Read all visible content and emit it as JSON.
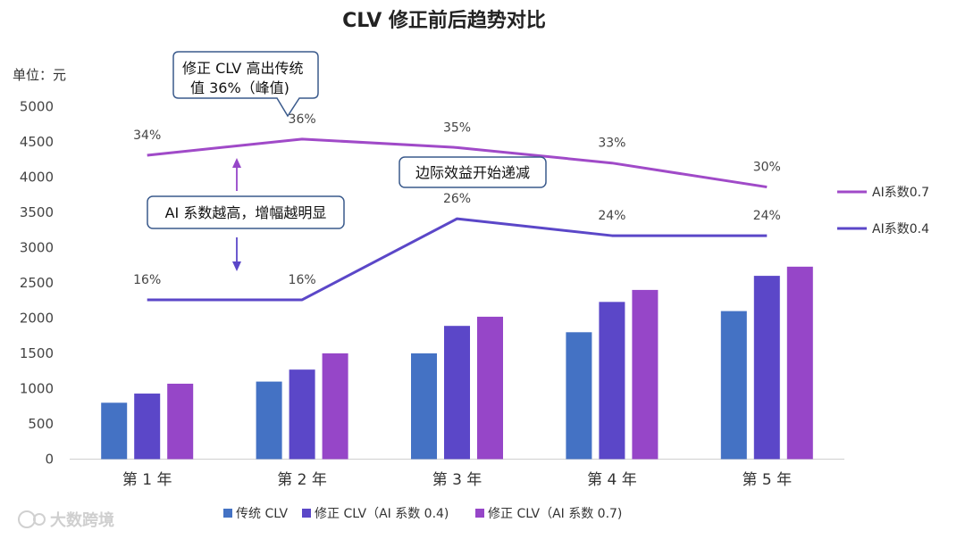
{
  "chart_data": {
    "type": "bar",
    "title": "CLV 修正前后趋势对比",
    "unit_label": "单位：元",
    "categories": [
      "第 1 年",
      "第 2 年",
      "第 3 年",
      "第 4 年",
      "第 5 年"
    ],
    "ylim": [
      0,
      5000
    ],
    "yticks": [
      "0",
      "500",
      "1000",
      "1500",
      "2000",
      "2500",
      "3000",
      "3500",
      "4000",
      "4500",
      "5000"
    ],
    "grid": false,
    "series": [
      {
        "name": "传统 CLV",
        "type": "bar",
        "color": "#4472c4",
        "values": [
          800,
          1100,
          1500,
          1800,
          2100
        ]
      },
      {
        "name": "修正 CLV（AI 系数 0.4)",
        "type": "bar",
        "color": "#5b47c8",
        "values": [
          930,
          1270,
          1890,
          2230,
          2600
        ]
      },
      {
        "name": "修正 CLV（AI 系数 0.7)",
        "type": "bar",
        "color": "#9646c8",
        "values": [
          1070,
          1500,
          2020,
          2400,
          2730
        ]
      }
    ],
    "lines": [
      {
        "name": "AI系数0.7",
        "color": "#a04ac8",
        "values": [
          4310,
          4540,
          4420,
          4200,
          3860
        ],
        "labels": [
          "34%",
          "36%",
          "35%",
          "33%",
          "30%"
        ]
      },
      {
        "name": "AI系数0.4",
        "color": "#5b47c8",
        "values": [
          2260,
          2260,
          3410,
          3170,
          3170
        ],
        "labels": [
          "16%",
          "16%",
          "26%",
          "24%",
          "24%"
        ]
      }
    ],
    "legend_position": "bottom",
    "annotations": {
      "peak": [
        "修正 CLV 高出传统",
        "值 36%（峰值)"
      ],
      "diminishing": "边际效益开始递减",
      "increase": "AI 系数越高，增幅越明显"
    }
  },
  "watermark": "大数跨境"
}
